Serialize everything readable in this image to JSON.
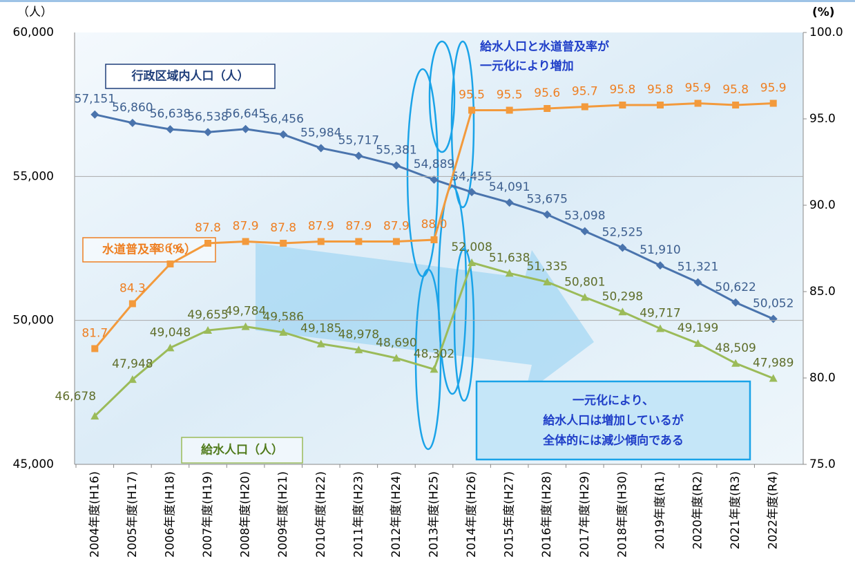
{
  "chart_data": {
    "type": "line",
    "categories": [
      "2004年度(H16)",
      "2005年度(H17)",
      "2006年度(H18)",
      "2007年度(H19)",
      "2008年度(H20)",
      "2009年度(H21)",
      "2010年度(H22)",
      "2011年度(H23)",
      "2012年度(H24)",
      "2013年度(H25)",
      "2014年度(H26)",
      "2015年度(H27)",
      "2016年度(H28)",
      "2017年度(H29)",
      "2018年度(H30)",
      "2019年度(R1)",
      "2020年度(R2)",
      "2021年度(R3)",
      "2022年度(R4)"
    ],
    "y_unit": "（人）",
    "y2_unit": "(%)",
    "ylim": [
      45000,
      60000
    ],
    "yticks": [
      {
        "value": 45000,
        "label": "45,000"
      },
      {
        "value": 50000,
        "label": "50,000"
      },
      {
        "value": 55000,
        "label": "55,000"
      },
      {
        "value": 60000,
        "label": "60,000"
      }
    ],
    "y2lim": [
      75,
      100
    ],
    "y2ticks": [
      {
        "value": 75,
        "label": "75.0"
      },
      {
        "value": 80,
        "label": "80.0"
      },
      {
        "value": 85,
        "label": "85.0"
      },
      {
        "value": 90,
        "label": "90.0"
      },
      {
        "value": 95,
        "label": "95.0"
      },
      {
        "value": 100,
        "label": "100.0"
      }
    ],
    "grid": true,
    "series": [
      {
        "name": "行政区域内人口（人）",
        "color": "#4a74ad",
        "label_color": "#3d5f8f",
        "marker": "diamond",
        "values": [
          57151,
          56860,
          56638,
          56538,
          56645,
          56456,
          55984,
          55717,
          55381,
          54889,
          54455,
          54091,
          53675,
          53098,
          52525,
          51910,
          51321,
          50622,
          50052
        ],
        "value_labels": [
          "57,151",
          "56,860",
          "56,638",
          "56,538",
          "56,645",
          "56,456",
          "55,984",
          "55,717",
          "55,381",
          "54,889",
          "54,455",
          "54,091",
          "53,675",
          "53,098",
          "52,525",
          "51,910",
          "51,321",
          "50,622",
          "50,052"
        ]
      },
      {
        "name": "水道普及率（%）",
        "color": "#f39a3c",
        "label_color": "#ee7f22",
        "marker": "square",
        "axis": "y2",
        "values": [
          81.7,
          84.3,
          86.6,
          87.8,
          87.9,
          87.8,
          87.9,
          87.9,
          87.9,
          88.0,
          95.5,
          95.5,
          95.6,
          95.7,
          95.8,
          95.8,
          95.9,
          95.8,
          95.9
        ],
        "value_labels": [
          "81.7",
          "84.3",
          "86.6",
          "87.8",
          "87.9",
          "87.8",
          "87.9",
          "87.9",
          "87.9",
          "88.0",
          "95.5",
          "95.5",
          "95.6",
          "95.7",
          "95.8",
          "95.8",
          "95.9",
          "95.8",
          "95.9"
        ]
      },
      {
        "name": "給水人口（人）",
        "color": "#9bbb59",
        "label_color": "#5f6e2a",
        "marker": "triangle",
        "values": [
          46678,
          47948,
          49048,
          49655,
          49784,
          49586,
          49185,
          48978,
          48690,
          48302,
          52008,
          51638,
          51335,
          50801,
          50298,
          49717,
          49199,
          48509,
          47989
        ],
        "value_labels": [
          "46,678",
          "47,948",
          "49,048",
          "49,655",
          "49,784",
          "49,586",
          "49,185",
          "48,978",
          "48,690",
          "48,302",
          "52,008",
          "51,638",
          "51,335",
          "50,801",
          "50,298",
          "49,717",
          "49,199",
          "48,509",
          "47,989"
        ]
      }
    ],
    "annotations": [
      {
        "lines": [
          "給水人口と水道普及率が",
          "一元化により増加"
        ]
      },
      {
        "lines": [
          "一元化により、",
          "給水人口は増加しているが",
          "全体的には減少傾向である"
        ]
      }
    ]
  }
}
